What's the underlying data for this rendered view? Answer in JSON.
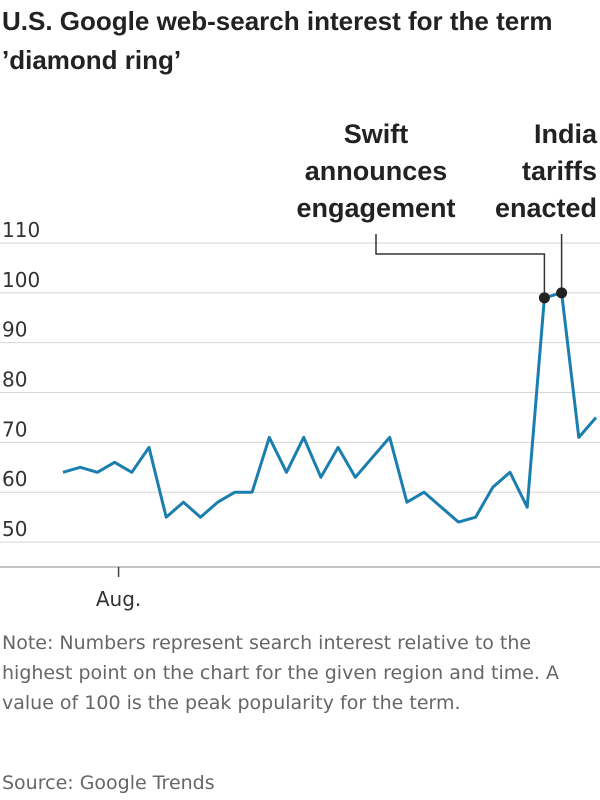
{
  "chart_data": {
    "type": "line",
    "title": "U.S. Google web-search interest for the term ’diamond ring’",
    "xlabel": "",
    "ylabel": "",
    "ylim": [
      45,
      111
    ],
    "yticks": [
      "110",
      "100",
      "90",
      "80",
      "70",
      "60",
      "50"
    ],
    "ytick_values": [
      110,
      100,
      90,
      80,
      70,
      60,
      50
    ],
    "xtick_label": "Aug.",
    "xtick_index": 3,
    "grid": true,
    "series": [
      {
        "name": "diamond ring",
        "color": "#1a7fae",
        "values": [
          64,
          65,
          64,
          66,
          64,
          69,
          55,
          58,
          55,
          58,
          60,
          60,
          71,
          64,
          71,
          63,
          69,
          63,
          67,
          71,
          58,
          60,
          57,
          54,
          55,
          61,
          64,
          57,
          99,
          100,
          71,
          75
        ]
      }
    ],
    "annotations": [
      {
        "lines": [
          "Swift",
          "announces",
          "engagement"
        ],
        "index": 28
      },
      {
        "lines": [
          "India",
          "tariffs",
          "enacted"
        ],
        "index": 29
      }
    ]
  },
  "note": "Note: Numbers represent search interest relative to the highest point on the chart for the given region and time. A value of 100 is the peak popularity for the term.",
  "source": "Source: Google Trends"
}
